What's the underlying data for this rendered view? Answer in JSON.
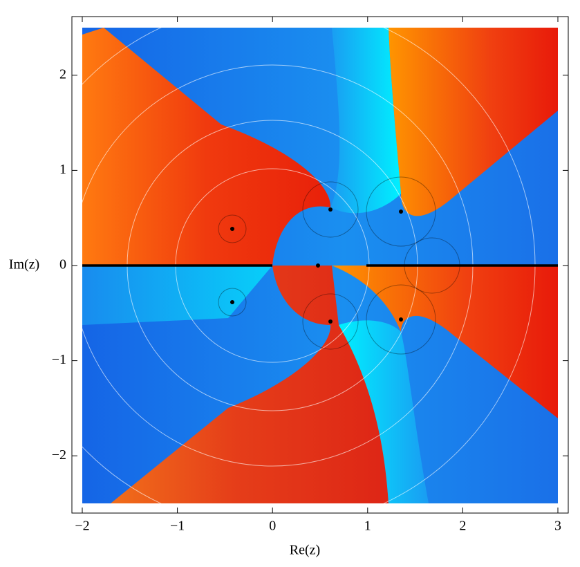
{
  "chart_data": {
    "type": "domain-coloring",
    "x_label": "Re(z)",
    "y_label": "Im(z)",
    "xlim": [
      -2,
      3
    ],
    "ylim": [
      -2.5,
      2.5
    ],
    "xticks": [
      {
        "value": -2,
        "label": "−2"
      },
      {
        "value": -1,
        "label": "−1"
      },
      0,
      1,
      2,
      3
    ],
    "yticks": [
      {
        "value": -2,
        "label": "−2"
      },
      {
        "value": -1,
        "label": "−1"
      },
      0,
      1,
      2
    ]
  }
}
